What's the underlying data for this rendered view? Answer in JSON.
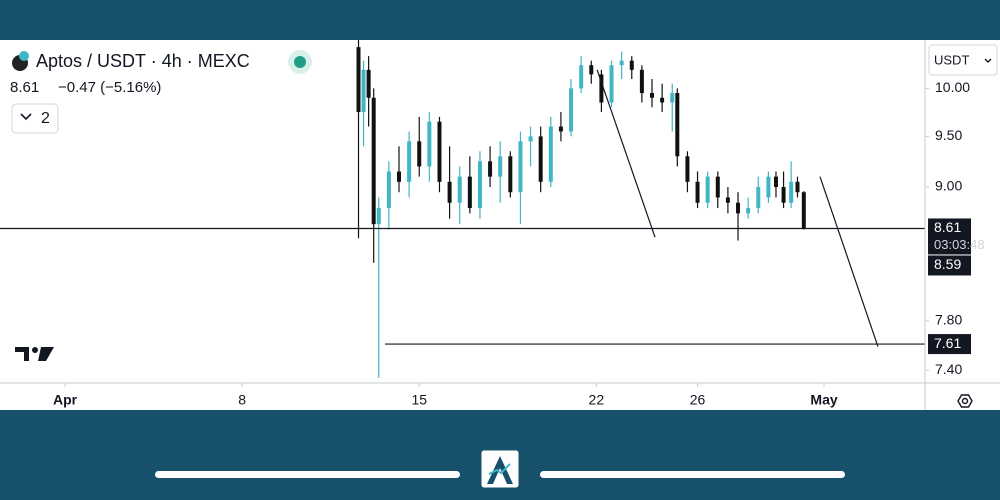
{
  "header": {
    "symbol": "Aptos / USDT · 4h · MEXC",
    "price": "8.61",
    "change": "−0.47 (−5.16%)",
    "indicator_count": "2",
    "currency": "USDT"
  },
  "chart_data": {
    "type": "candlestick",
    "log": true,
    "up_color": "#3fb6c6",
    "down_color": "#111111",
    "x": [
      11.6,
      11.8,
      12.0,
      12.2,
      12.4,
      12.8,
      13.2,
      13.6,
      14.0,
      14.4,
      14.8,
      15.2,
      15.6,
      16.0,
      16.4,
      16.8,
      17.2,
      17.6,
      18.0,
      18.4,
      18.8,
      19.2,
      19.6,
      20.0,
      20.4,
      20.8,
      21.2,
      21.6,
      22.0,
      22.4,
      22.8,
      23.2,
      23.6,
      24.0,
      24.2,
      24.6,
      25.0,
      25.4,
      25.8,
      26.2,
      26.6,
      27.0,
      27.4,
      27.8,
      28.1,
      28.4,
      28.7,
      28.95,
      29.2
    ],
    "open": [
      10.45,
      9.75,
      10.2,
      9.9,
      8.65,
      8.8,
      9.15,
      9.05,
      9.45,
      9.2,
      9.65,
      9.05,
      8.85,
      9.1,
      8.8,
      9.25,
      9.1,
      9.3,
      8.95,
      9.45,
      9.5,
      9.05,
      9.6,
      9.55,
      10.0,
      10.25,
      10.15,
      9.85,
      10.25,
      10.3,
      10.2,
      9.95,
      9.9,
      9.85,
      9.95,
      9.3,
      9.05,
      8.85,
      9.1,
      8.9,
      8.85,
      8.75,
      8.8,
      8.9,
      9.1,
      9.0,
      8.85,
      9.05,
      8.95
    ],
    "high": [
      10.53,
      10.3,
      10.35,
      10.0,
      8.9,
      9.25,
      9.4,
      9.55,
      9.7,
      9.75,
      9.7,
      9.4,
      9.2,
      9.3,
      9.35,
      9.4,
      9.45,
      9.35,
      9.55,
      9.6,
      9.6,
      9.7,
      9.75,
      10.1,
      10.35,
      10.3,
      10.2,
      10.3,
      10.4,
      10.35,
      10.25,
      10.1,
      10.05,
      10.05,
      10.0,
      9.35,
      9.15,
      9.15,
      9.15,
      9.0,
      8.95,
      8.9,
      9.1,
      9.15,
      9.15,
      9.15,
      9.25,
      9.1,
      8.96
    ],
    "low": [
      8.52,
      9.4,
      9.6,
      8.3,
      7.34,
      8.6,
      8.95,
      8.9,
      9.1,
      9.05,
      8.95,
      8.7,
      8.65,
      8.75,
      8.7,
      9.0,
      8.85,
      8.9,
      8.65,
      9.2,
      8.95,
      9.0,
      9.45,
      9.5,
      9.95,
      10.05,
      9.75,
      9.8,
      10.1,
      10.1,
      9.85,
      9.8,
      9.75,
      9.55,
      9.2,
      8.95,
      8.8,
      8.8,
      8.8,
      8.75,
      8.5,
      8.7,
      8.75,
      8.85,
      8.9,
      8.8,
      8.8,
      8.9,
      8.6
    ],
    "close": [
      9.75,
      10.2,
      9.9,
      8.65,
      8.8,
      9.15,
      9.05,
      9.45,
      9.2,
      9.65,
      9.05,
      8.85,
      9.1,
      8.8,
      9.25,
      9.1,
      9.3,
      8.95,
      9.45,
      9.5,
      9.05,
      9.6,
      9.55,
      10.0,
      10.25,
      10.15,
      9.85,
      10.25,
      10.3,
      10.2,
      9.95,
      9.9,
      9.85,
      9.95,
      9.3,
      9.05,
      8.85,
      9.1,
      8.9,
      8.85,
      8.75,
      8.8,
      9.0,
      9.1,
      9.0,
      8.85,
      9.05,
      8.95,
      8.61
    ],
    "xlim": [
      -2.57,
      33.99
    ],
    "xticks": [
      {
        "value": 0,
        "label": "Apr"
      },
      {
        "value": 7,
        "label": "8"
      },
      {
        "value": 14,
        "label": "15"
      },
      {
        "value": 21,
        "label": "22"
      },
      {
        "value": 25,
        "label": "26"
      },
      {
        "value": 30,
        "label": "May"
      }
    ],
    "ylim": [
      7.3,
      10.53
    ],
    "yticks": [
      {
        "value": 7.4,
        "label": "7.40"
      },
      {
        "value": 7.8,
        "label": "7.80"
      },
      {
        "value": 9,
        "label": "9.00"
      },
      {
        "value": 9.5,
        "label": "9.50"
      },
      {
        "value": 10,
        "label": "10.00"
      }
    ],
    "price_lines": [
      {
        "value": 8.61,
        "countdown": "03:03:48",
        "start_x": -2.57
      },
      {
        "value": 8.59
      },
      {
        "value": 7.61,
        "start_x": 12.65
      }
    ],
    "trendlines": [
      {
        "x": [
          21.03,
          23.32
        ],
        "y": [
          10.2,
          8.53
        ]
      },
      {
        "x": [
          29.84,
          32.13
        ],
        "y": [
          9.1,
          7.59
        ]
      }
    ]
  }
}
